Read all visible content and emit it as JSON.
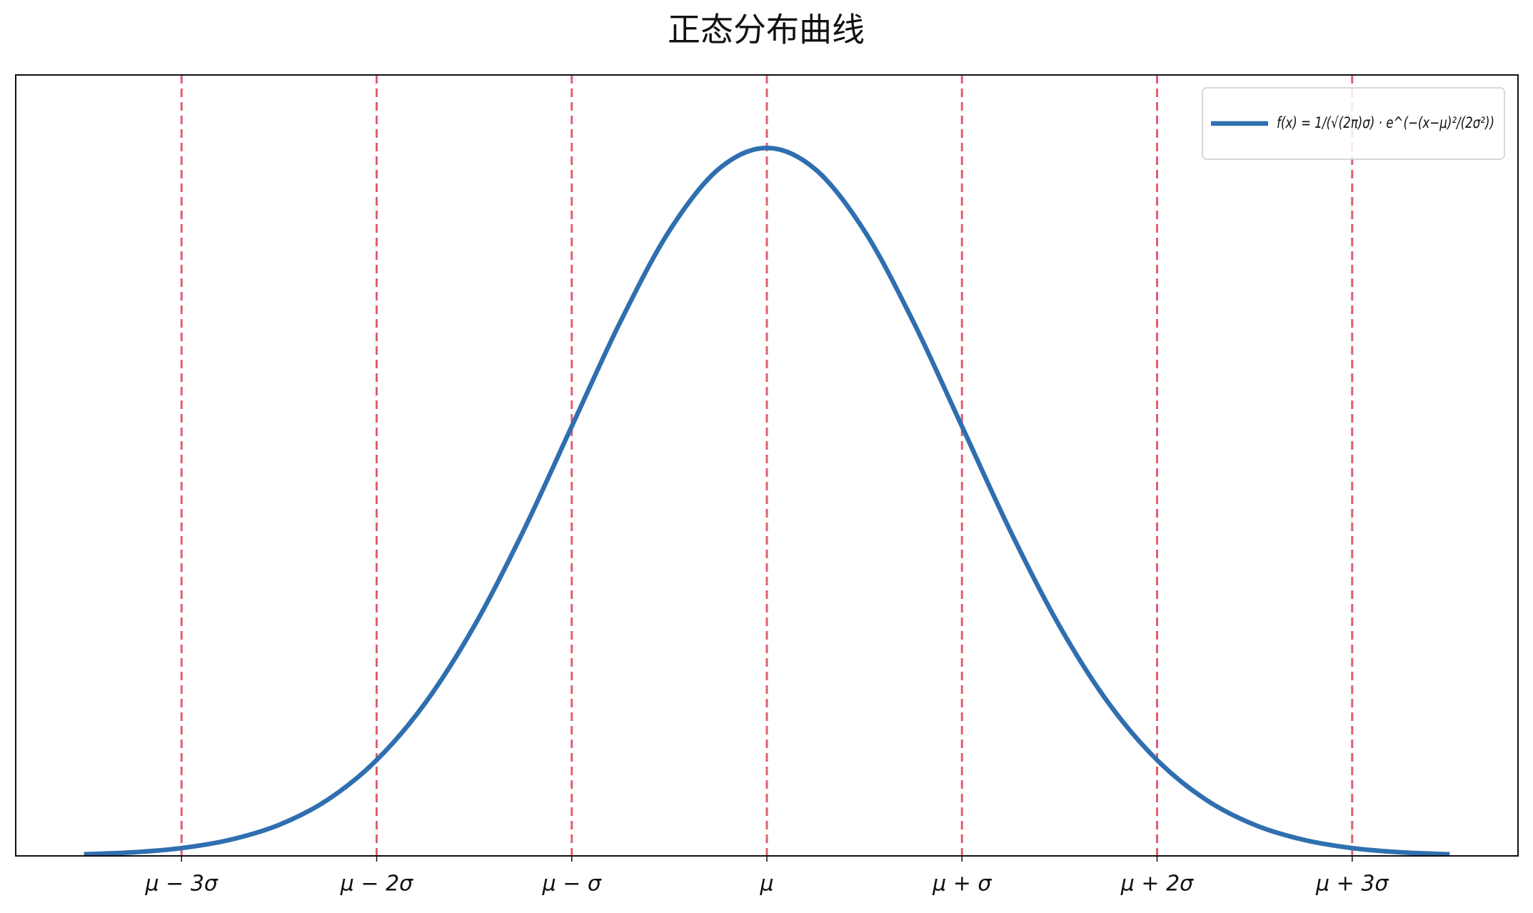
{
  "chart_data": {
    "type": "line",
    "title": "正态分布曲线",
    "x": [
      -3.5,
      -3.25,
      -3,
      -2.75,
      -2.5,
      -2.25,
      -2,
      -1.75,
      -1.5,
      -1.25,
      -1,
      -0.75,
      -0.5,
      -0.25,
      0,
      0.25,
      0.5,
      0.75,
      1,
      1.25,
      1.5,
      1.75,
      2,
      2.25,
      2.5,
      2.75,
      3,
      3.25,
      3.5
    ],
    "series": [
      {
        "name": "f(x) = 1/(√(2π)σ) · e^(−(x−μ)²/(2σ²))",
        "color": "#2f6fb0",
        "values": [
          0.0009,
          0.002,
          0.0044,
          0.0091,
          0.0175,
          0.0317,
          0.054,
          0.0863,
          0.1295,
          0.1826,
          0.242,
          0.3011,
          0.3521,
          0.3867,
          0.3989,
          0.3867,
          0.3521,
          0.3011,
          0.242,
          0.1826,
          0.1295,
          0.0863,
          0.054,
          0.0317,
          0.0175,
          0.0091,
          0.0044,
          0.002,
          0.0009
        ]
      }
    ],
    "xlim": [
      -3.85,
      3.85
    ],
    "ylim": [
      0,
      0.44
    ],
    "xticks": [
      {
        "value": -3,
        "label": "μ − 3σ"
      },
      {
        "value": -2,
        "label": "μ − 2σ"
      },
      {
        "value": -1,
        "label": "μ − σ"
      },
      {
        "value": 0,
        "label": "μ"
      },
      {
        "value": 1,
        "label": "μ + σ"
      },
      {
        "value": 2,
        "label": "μ + 2σ"
      },
      {
        "value": 3,
        "label": "μ + 3σ"
      }
    ],
    "vline_color": "#e06070",
    "legend": "upper right"
  }
}
